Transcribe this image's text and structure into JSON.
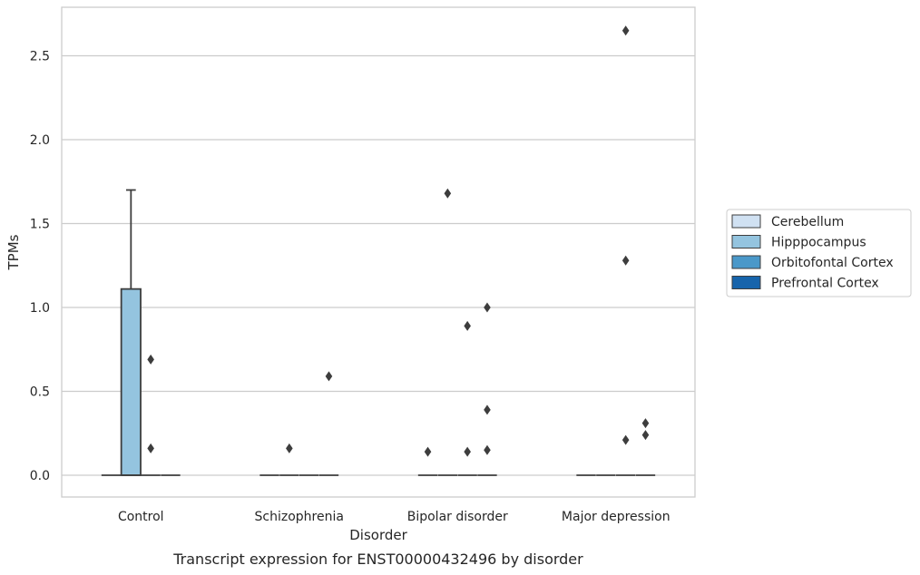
{
  "chart_data": {
    "type": "box",
    "caption": "Transcript expression for ENST00000432496 by disorder",
    "xlabel": "Disorder",
    "ylabel": "TPMs",
    "ylim": [
      -0.13,
      2.92
    ],
    "yticks": [
      0.0,
      0.5,
      1.0,
      1.5,
      2.0,
      2.5
    ],
    "ytick_labels": [
      "0.0",
      "0.5",
      "1.0",
      "1.5",
      "2.0",
      "2.5"
    ],
    "grid": "horizontal",
    "legend_position": "right",
    "categories": [
      "Control",
      "Schizophrenia",
      "Bipolar disorder",
      "Major depression"
    ],
    "series": [
      {
        "name": "Cerebellum",
        "color": "#d0e1f2",
        "boxes": [
          {
            "q1": 0,
            "median": 0,
            "q3": 0,
            "whisker_low": 0,
            "whisker_high": 0,
            "outliers": []
          },
          {
            "q1": 0,
            "median": 0,
            "q3": 0,
            "whisker_low": 0,
            "whisker_high": 0,
            "outliers": []
          },
          {
            "q1": 0,
            "median": 0,
            "q3": 0,
            "whisker_low": 0,
            "whisker_high": 0,
            "outliers": [
              0.14
            ]
          },
          {
            "q1": 0,
            "median": 0,
            "q3": 0,
            "whisker_low": 0,
            "whisker_high": 0,
            "outliers": []
          }
        ]
      },
      {
        "name": "Hipppocampus",
        "color": "#94c4df",
        "boxes": [
          {
            "q1": 0,
            "median": 0,
            "q3": 1.11,
            "whisker_low": 0,
            "whisker_high": 1.7,
            "outliers": []
          },
          {
            "q1": 0,
            "median": 0,
            "q3": 0,
            "whisker_low": 0,
            "whisker_high": 0,
            "outliers": [
              0.16
            ]
          },
          {
            "q1": 0,
            "median": 0,
            "q3": 0,
            "whisker_low": 0,
            "whisker_high": 0,
            "outliers": [
              1.68
            ]
          },
          {
            "q1": 0,
            "median": 0,
            "q3": 0,
            "whisker_low": 0,
            "whisker_high": 0,
            "outliers": []
          }
        ]
      },
      {
        "name": "Orbitofontal Cortex",
        "color": "#4a98c9",
        "boxes": [
          {
            "q1": 0,
            "median": 0,
            "q3": 0,
            "whisker_low": 0,
            "whisker_high": 0,
            "outliers": [
              0.69,
              0.16
            ]
          },
          {
            "q1": 0,
            "median": 0,
            "q3": 0,
            "whisker_low": 0,
            "whisker_high": 0,
            "outliers": []
          },
          {
            "q1": 0,
            "median": 0,
            "q3": 0,
            "whisker_low": 0,
            "whisker_high": 0,
            "outliers": [
              0.89,
              0.14
            ]
          },
          {
            "q1": 0,
            "median": 0,
            "q3": 0,
            "whisker_low": 0,
            "whisker_high": 0,
            "outliers": [
              1.28,
              0.21,
              2.65
            ]
          }
        ]
      },
      {
        "name": "Prefrontal Cortex",
        "color": "#1764ab",
        "boxes": [
          {
            "q1": 0,
            "median": 0,
            "q3": 0,
            "whisker_low": 0,
            "whisker_high": 0,
            "outliers": []
          },
          {
            "q1": 0,
            "median": 0,
            "q3": 0,
            "whisker_low": 0,
            "whisker_high": 0,
            "outliers": [
              0.59
            ]
          },
          {
            "q1": 0,
            "median": 0,
            "q3": 0,
            "whisker_low": 0,
            "whisker_high": 0,
            "outliers": [
              1.0,
              0.39,
              0.15
            ]
          },
          {
            "q1": 0,
            "median": 0,
            "q3": 0,
            "whisker_low": 0,
            "whisker_high": 0,
            "outliers": [
              0.31,
              0.24
            ]
          }
        ]
      }
    ]
  }
}
